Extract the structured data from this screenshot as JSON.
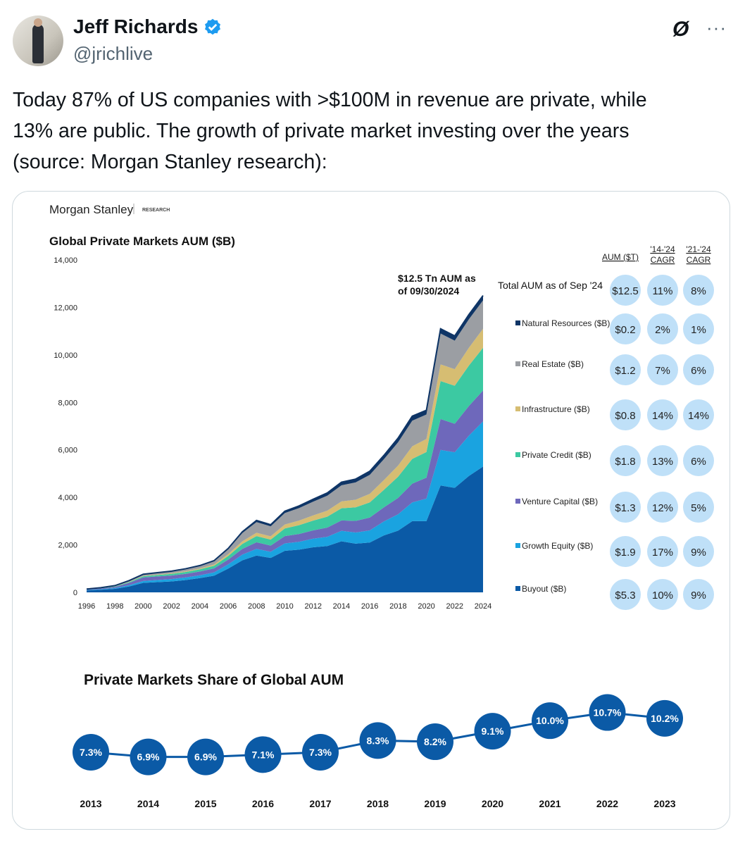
{
  "tweet": {
    "author_name": "Jeff Richards",
    "author_handle": "@jrichlive",
    "verified": true,
    "grok_icon": "Ø",
    "more_icon": "···",
    "text_lines": [
      "Today 87% of US companies with >$100M in revenue are private, while",
      "13% are public. The growth of private market investing over the years",
      "(source: Morgan Stanley research):"
    ]
  },
  "colors": {
    "buyout": "#0b5aa6",
    "growth_equity": "#1aa3e0",
    "venture_capital": "#6e68bb",
    "private_credit": "#3cc9a2",
    "infrastructure": "#d6bd72",
    "real_estate": "#9b9ea3",
    "natural_resources": "#0f3566",
    "bubble": "#bfe0f8",
    "point": "#0b5aa6"
  },
  "image": {
    "brand": "Morgan Stanley",
    "brand_sub": "RESEARCH"
  },
  "chart_data": [
    {
      "type": "area",
      "title": "Global Private Markets AUM ($B)",
      "annotation": [
        "$12.5 Tn AUM as",
        "of 09/30/2024"
      ],
      "ylim": [
        0,
        14000
      ],
      "yticks": [
        "0",
        "2,000",
        "4,000",
        "6,000",
        "8,000",
        "10,000",
        "12,000",
        "14,000"
      ],
      "xticks": [
        "1996",
        "1998",
        "2000",
        "2002",
        "2004",
        "2006",
        "2008",
        "2010",
        "2012",
        "2014",
        "2016",
        "2018",
        "2020",
        "2022",
        "2024"
      ],
      "x": [
        1996,
        1997,
        1998,
        1999,
        2000,
        2001,
        2002,
        2003,
        2004,
        2005,
        2006,
        2007,
        2008,
        2009,
        2010,
        2011,
        2012,
        2013,
        2014,
        2015,
        2016,
        2017,
        2018,
        2019,
        2020,
        2021,
        2022,
        2023,
        2024
      ],
      "series": [
        {
          "name": "Buyout",
          "key": "buyout",
          "values": [
            80,
            110,
            150,
            250,
            400,
            430,
            460,
            520,
            600,
            700,
            1000,
            1350,
            1550,
            1450,
            1750,
            1800,
            1900,
            1950,
            2150,
            2050,
            2100,
            2400,
            2600,
            3000,
            3000,
            4500,
            4400,
            4900,
            5300
          ]
        },
        {
          "name": "Growth Equity",
          "key": "growth_equity",
          "values": [
            20,
            25,
            30,
            50,
            80,
            90,
            100,
            110,
            120,
            140,
            180,
            240,
            280,
            260,
            310,
            330,
            360,
            390,
            440,
            470,
            510,
            590,
            690,
            790,
            950,
            1500,
            1500,
            1700,
            1900
          ]
        },
        {
          "name": "Venture Capital",
          "key": "venture_capital",
          "values": [
            20,
            30,
            50,
            100,
            150,
            150,
            150,
            150,
            160,
            170,
            200,
            240,
            280,
            260,
            310,
            330,
            350,
            390,
            440,
            490,
            540,
            590,
            690,
            790,
            880,
            1300,
            1200,
            1250,
            1300
          ]
        },
        {
          "name": "Private Credit",
          "key": "private_credit",
          "values": [
            10,
            15,
            20,
            30,
            50,
            60,
            70,
            80,
            90,
            110,
            150,
            210,
            260,
            250,
            320,
            370,
            410,
            460,
            510,
            570,
            640,
            740,
            890,
            1040,
            1080,
            1600,
            1600,
            1700,
            1800
          ]
        },
        {
          "name": "Infrastructure",
          "key": "infrastructure",
          "values": [
            0,
            0,
            5,
            10,
            15,
            20,
            25,
            30,
            40,
            50,
            80,
            110,
            140,
            140,
            170,
            190,
            220,
            250,
            290,
            320,
            360,
            410,
            470,
            530,
            550,
            700,
            700,
            750,
            800
          ]
        },
        {
          "name": "Real Estate",
          "key": "real_estate",
          "values": [
            10,
            15,
            30,
            50,
            60,
            70,
            80,
            90,
            100,
            140,
            210,
            350,
            450,
            420,
            480,
            530,
            580,
            630,
            680,
            730,
            800,
            880,
            980,
            1080,
            1030,
            1300,
            1200,
            1200,
            1200
          ]
        },
        {
          "name": "Natural Resources",
          "key": "natural_resources",
          "values": [
            0,
            0,
            0,
            5,
            10,
            10,
            10,
            15,
            20,
            25,
            30,
            50,
            70,
            70,
            80,
            90,
            100,
            120,
            130,
            140,
            150,
            160,
            180,
            190,
            180,
            200,
            200,
            200,
            200
          ]
        }
      ]
    },
    {
      "type": "table",
      "headers": [
        [
          "AUM ($T)"
        ],
        [
          "'14-'24",
          "CAGR"
        ],
        [
          "'21-'24",
          "CAGR"
        ]
      ],
      "rows": [
        {
          "label": "Total AUM as of Sep '24",
          "key": "",
          "aum": "$12.5",
          "cagr_14_24": "11%",
          "cagr_21_24": "8%"
        },
        {
          "label": "Natural Resources ($B)",
          "key": "natural_resources",
          "aum": "$0.2",
          "cagr_14_24": "2%",
          "cagr_21_24": "1%"
        },
        {
          "label": "Real Estate ($B)",
          "key": "real_estate",
          "aum": "$1.2",
          "cagr_14_24": "7%",
          "cagr_21_24": "6%"
        },
        {
          "label": "Infrastructure ($B)",
          "key": "infrastructure",
          "aum": "$0.8",
          "cagr_14_24": "14%",
          "cagr_21_24": "14%"
        },
        {
          "label": "Private Credit ($B)",
          "key": "private_credit",
          "aum": "$1.8",
          "cagr_14_24": "13%",
          "cagr_21_24": "6%"
        },
        {
          "label": "Venture Capital ($B)",
          "key": "venture_capital",
          "aum": "$1.3",
          "cagr_14_24": "12%",
          "cagr_21_24": "5%"
        },
        {
          "label": "Growth Equity ($B)",
          "key": "growth_equity",
          "aum": "$1.9",
          "cagr_14_24": "17%",
          "cagr_21_24": "9%"
        },
        {
          "label": "Buyout ($B)",
          "key": "buyout",
          "aum": "$5.3",
          "cagr_14_24": "10%",
          "cagr_21_24": "9%"
        }
      ]
    },
    {
      "type": "line",
      "title": "Private Markets Share of Global AUM",
      "x": [
        "2013",
        "2014",
        "2015",
        "2016",
        "2017",
        "2018",
        "2019",
        "2020",
        "2021",
        "2022",
        "2023"
      ],
      "values": [
        7.3,
        6.9,
        6.9,
        7.1,
        7.3,
        8.3,
        8.2,
        9.1,
        10.0,
        10.7,
        10.2
      ],
      "labels": [
        "7.3%",
        "6.9%",
        "6.9%",
        "7.1%",
        "7.3%",
        "8.3%",
        "8.2%",
        "9.1%",
        "10.0%",
        "10.7%",
        "10.2%"
      ]
    }
  ]
}
